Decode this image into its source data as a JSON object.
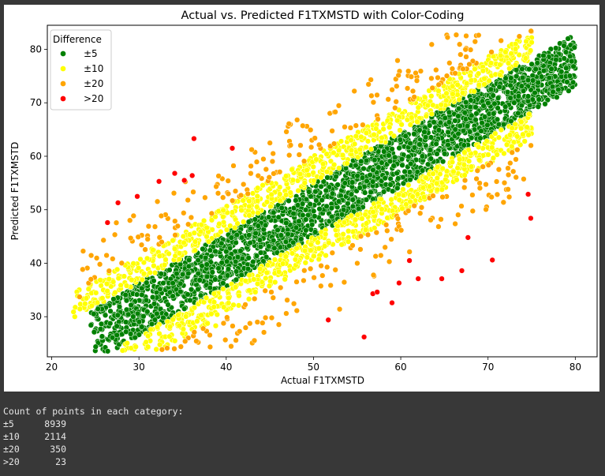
{
  "colors": {
    "±5": "#008000",
    "±10": "#ffff00",
    "±20": "#ffa500",
    ">20": "#ff0000",
    "console_bg": "#383838"
  },
  "chart_data": {
    "type": "scatter",
    "title": "Actual vs. Predicted F1TXMSTD with Color-Coding",
    "xlabel": "Actual F1TXMSTD",
    "ylabel": "Predicted F1TXMSTD",
    "xlim": [
      19.5,
      82.5
    ],
    "ylim": [
      22.5,
      84.5
    ],
    "xticks": [
      20,
      30,
      40,
      50,
      60,
      70,
      80
    ],
    "yticks": [
      30,
      40,
      50,
      60,
      70,
      80
    ],
    "grid": false,
    "legend": {
      "title": "Difference",
      "placement": "top-left",
      "entries": [
        "±5",
        "±10",
        "±20",
        ">20"
      ]
    },
    "series": [
      {
        "name": ">20",
        "points": [
          [
            36.3,
            63.3
          ],
          [
            40.7,
            61.5
          ],
          [
            27.6,
            51.3
          ],
          [
            29.8,
            52.5
          ],
          [
            26.4,
            47.6
          ],
          [
            32.3,
            55.3
          ],
          [
            34.1,
            56.8
          ],
          [
            35.2,
            55.5
          ],
          [
            36.1,
            56.4
          ],
          [
            51.7,
            29.4
          ],
          [
            55.8,
            26.2
          ],
          [
            56.8,
            34.3
          ],
          [
            57.3,
            34.6
          ],
          [
            59.0,
            32.6
          ],
          [
            59.8,
            36.3
          ],
          [
            61.0,
            40.5
          ],
          [
            62.0,
            37.1
          ],
          [
            64.7,
            37.1
          ],
          [
            67.0,
            38.6
          ],
          [
            67.7,
            44.8
          ],
          [
            70.5,
            40.6
          ],
          [
            74.6,
            52.9
          ],
          [
            74.9,
            48.4
          ]
        ]
      }
    ],
    "clusters": [
      {
        "name": "±5",
        "x_range": [
          24.5,
          80
        ],
        "offset_range": [
          -5,
          5
        ],
        "count": 8939
      },
      {
        "name": "±10",
        "x_range": [
          22.5,
          75
        ],
        "offset_range": [
          -10,
          10
        ],
        "count": 2114
      },
      {
        "name": "±20",
        "x_range": [
          23,
          75
        ],
        "offset_range": [
          -17,
          17
        ],
        "count": 350
      }
    ],
    "extremes": {
      "±5": [
        [
          79.8,
          76.8
        ],
        [
          76.4,
          76.0
        ],
        [
          24.5,
          28.4
        ],
        [
          25.6,
          27.7
        ]
      ],
      "±10": [
        [
          22.5,
          30.9
        ],
        [
          75.0,
          81.3
        ],
        [
          33.5,
          26.3
        ],
        [
          38.8,
          28.3
        ]
      ],
      "±20": [
        [
          67.5,
          78.6
        ],
        [
          23.2,
          33.7
        ],
        [
          24.5,
          37.0
        ],
        [
          53.0,
          31.4
        ],
        [
          44.5,
          29.8
        ],
        [
          31.0,
          44.5
        ]
      ]
    }
  },
  "console": {
    "header": "Count of points in each category:",
    "rows": [
      {
        "category": "±5",
        "count": "8939"
      },
      {
        "category": "±10",
        "count": "2114"
      },
      {
        "category": "±20",
        "count": "350"
      },
      {
        "category": ">20",
        "count": "23"
      }
    ]
  }
}
